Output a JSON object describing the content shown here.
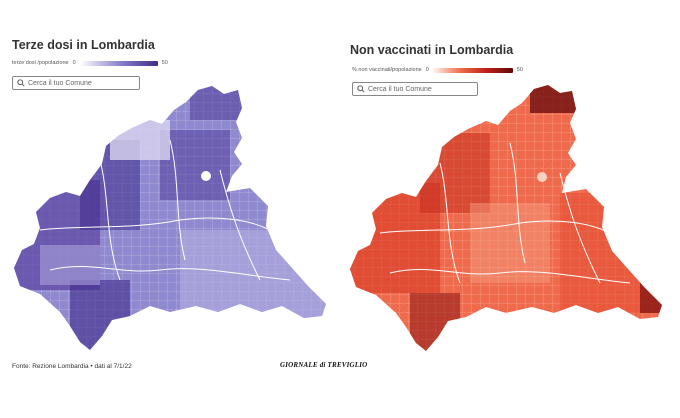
{
  "left": {
    "title": "Terze dosi in Lombardia",
    "legend_label": "terze dosi /popolazione",
    "legend_min": "0",
    "legend_max": "50",
    "search_placeholder": "Cerca il tuo Comune",
    "colors": {
      "fill_light": "#c6c3e8",
      "fill_mid": "#8c86cd",
      "fill_dark": "#4b338f",
      "border": "#ffffff"
    }
  },
  "right": {
    "title": "Non vaccinati in Lombardia",
    "legend_label": "% non vaccinati/popolazione",
    "legend_min": "0",
    "legend_max": "50",
    "search_placeholder": "Cerca il tuo Comune",
    "colors": {
      "fill_light": "#f4a184",
      "fill_mid": "#e54a2e",
      "fill_dark": "#8a1414",
      "border": "#ffffff"
    }
  },
  "footer": {
    "source": "Fonte: Rezione Lombardia • dati al 7/1/22",
    "logo_main": "GIORNALE di TREVIGLIO"
  }
}
